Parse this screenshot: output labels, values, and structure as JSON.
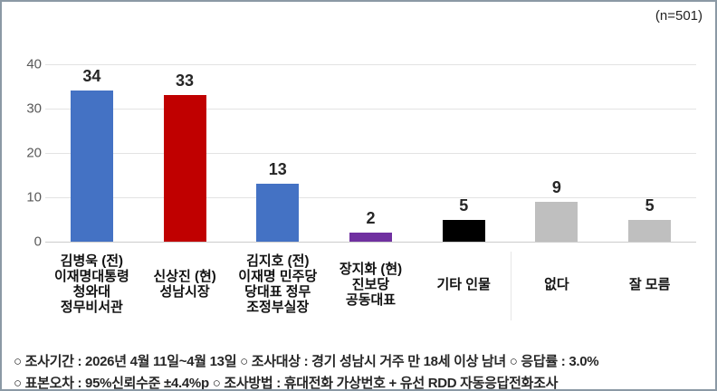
{
  "meta": {
    "sample_label": "(n=501)"
  },
  "chart_data": {
    "type": "bar",
    "title": "",
    "xlabel": "",
    "ylabel": "",
    "ylim": [
      0,
      40
    ],
    "yticks": [
      40,
      30,
      20,
      10,
      0
    ],
    "grid": true,
    "legend": "none",
    "categories": [
      "김병욱 (전)\n이재명대통령\n청와대\n정무비서관",
      "신상진 (현)\n성남시장",
      "김지호 (전)\n이재명 민주당\n당대표 정무\n조정부실장",
      "장지화 (현)\n진보당\n공동대표",
      "기타 인물",
      "없다",
      "잘 모름"
    ],
    "values": [
      34,
      33,
      13,
      2,
      5,
      9,
      5
    ],
    "bar_colors": [
      "#4472c4",
      "#c00000",
      "#4472c4",
      "#7030a0",
      "#000000",
      "#bfbfbf",
      "#bfbfbf"
    ]
  },
  "colors": {
    "frame_border": "#8b99a5",
    "gridline": "#e3e3e3",
    "axis_line": "#cccccc",
    "tick_text": "#595959",
    "value_text": "#262626"
  },
  "footnotes": {
    "line1": "○ 조사기간 : 2026년 4월 11일~4월 13일 ○ 조사대상 : 경기 성남시 거주 만 18세 이상 남녀 ○ 응답률 : 3.0%",
    "line2": "○ 표본오차 : 95%신뢰수준 ±4.4%p ○ 조사방법 : 휴대전화 가상번호 + 유선 RDD 자동응답전화조사"
  }
}
